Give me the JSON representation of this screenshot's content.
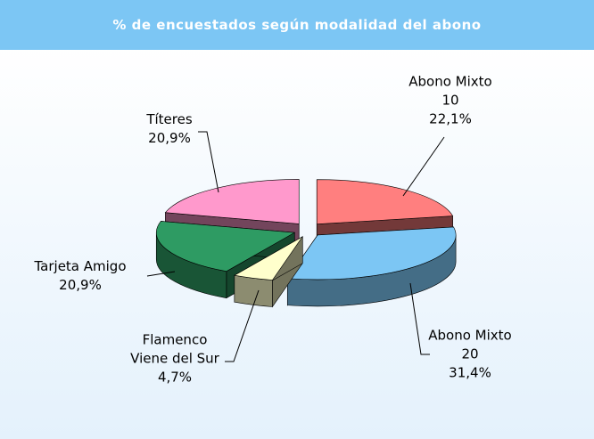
{
  "chart_data": {
    "type": "pie",
    "title": "% de encuestados según modalidad del abono",
    "categories": [
      "Abono Mixto\n10",
      "Abono Mixto\n20",
      "Flamenco\nViene del Sur",
      "Tarjeta Amigo",
      "Títeres"
    ],
    "values": [
      22.1,
      31.4,
      4.7,
      20.9,
      20.9
    ],
    "value_labels": [
      "22,1%",
      "31,4%",
      "4,7%",
      "20,9%",
      "20,9%"
    ],
    "colors": [
      "#ff7f7f",
      "#7cc6f4",
      "#ffffcc",
      "#2e9b63",
      "#ff99cc"
    ]
  }
}
